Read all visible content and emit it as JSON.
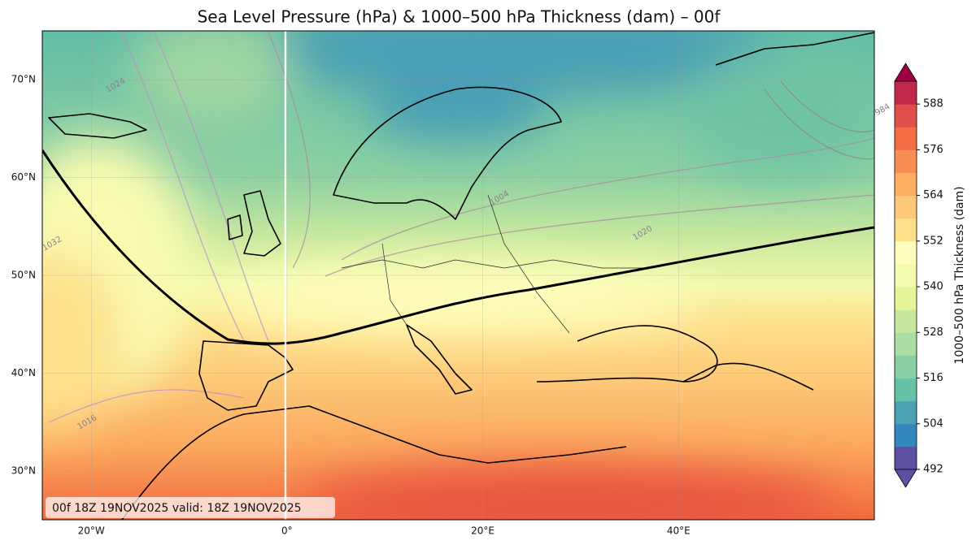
{
  "chart_data": {
    "type": "map",
    "title": "Sea Level Pressure (hPa) & 1000–500 hPa Thickness (dam) – 00f",
    "xlim": [
      -25,
      60
    ],
    "ylim": [
      25,
      75
    ],
    "xticks": [
      {
        "value": -20,
        "label": "20°W"
      },
      {
        "value": 0,
        "label": "0°"
      },
      {
        "value": 20,
        "label": "20°E"
      },
      {
        "value": 40,
        "label": "40°E"
      }
    ],
    "yticks": [
      {
        "value": 30,
        "label": "30°N"
      },
      {
        "value": 40,
        "label": "40°N"
      },
      {
        "value": 50,
        "label": "50°N"
      },
      {
        "value": 60,
        "label": "60°N"
      },
      {
        "value": 70,
        "label": "70°N"
      }
    ],
    "grid": true,
    "colorbar": {
      "label": "1000–500 hPa Thickness (dam)",
      "lim": [
        492,
        594
      ],
      "ticks": [
        492,
        504,
        516,
        528,
        540,
        552,
        564,
        576,
        588
      ],
      "colors": [
        "#5e4fa2",
        "#3288bd",
        "#4aa2b3",
        "#66c2a5",
        "#8acfa4",
        "#abdda4",
        "#c7e89e",
        "#e6f598",
        "#f4faae",
        "#fffebe",
        "#fee08b",
        "#fdc877",
        "#fdae61",
        "#f98e52",
        "#f46d43",
        "#e14f4a",
        "#c1274a"
      ],
      "under_color": "#5e4fa2",
      "over_color": "#9e0142"
    },
    "contour_labels": [
      "1024",
      "1032",
      "1016",
      "1004",
      "1020",
      "984"
    ],
    "annotation": "00f 18Z 19NOV2025 valid: 18Z 19NOV2025"
  }
}
